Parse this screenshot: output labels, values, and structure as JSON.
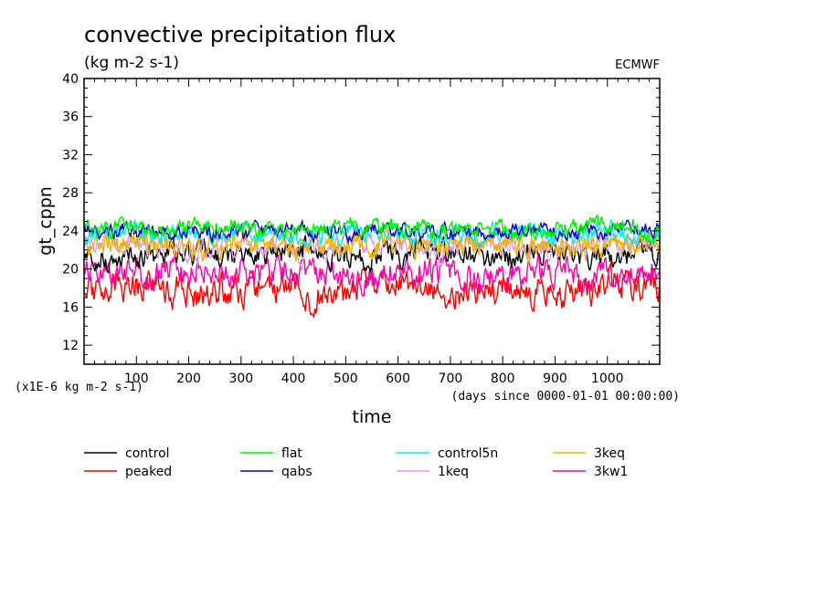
{
  "chart_data": {
    "type": "line",
    "title": "convective precipitation flux",
    "subtitle": "(kg m-2 s-1)",
    "source": "ECMWF",
    "ylabel": "gt_cppn",
    "xlabel": "time",
    "y_scale_note": "(x1E-6 kg m-2 s-1)",
    "x_unit_note": "(days since 0000-01-01 00:00:00)",
    "xlim": [
      0,
      1100
    ],
    "ylim": [
      10,
      40
    ],
    "xticks": [
      100,
      200,
      300,
      400,
      500,
      600,
      700,
      800,
      900,
      1000
    ],
    "yticks": [
      12,
      16,
      20,
      24,
      28,
      32,
      36,
      40
    ],
    "grid": false,
    "legend_position": "bottom",
    "series": [
      {
        "name": "control",
        "color": "#000000",
        "mean": 21.5,
        "amp": 0.9,
        "seed": 3
      },
      {
        "name": "peaked",
        "color": "#ff0000",
        "mean": 17.8,
        "amp": 1.2,
        "seed": 11
      },
      {
        "name": "flat",
        "color": "#00ee00",
        "mean": 24.3,
        "amp": 0.7,
        "seed": 19
      },
      {
        "name": "qabs",
        "color": "#0000cc",
        "mean": 24.0,
        "amp": 0.6,
        "seed": 23
      },
      {
        "name": "control5n",
        "color": "#00eeee",
        "mean": 23.6,
        "amp": 0.7,
        "seed": 31
      },
      {
        "name": "1keq",
        "color": "#dda0dd",
        "mean": 22.4,
        "amp": 0.9,
        "seed": 37
      },
      {
        "name": "3keq",
        "color": "#f0b000",
        "mean": 22.5,
        "amp": 0.9,
        "seed": 43
      },
      {
        "name": "3kw1",
        "color": "#ff00aa",
        "mean": 19.6,
        "amp": 1.1,
        "seed": 53
      }
    ]
  }
}
